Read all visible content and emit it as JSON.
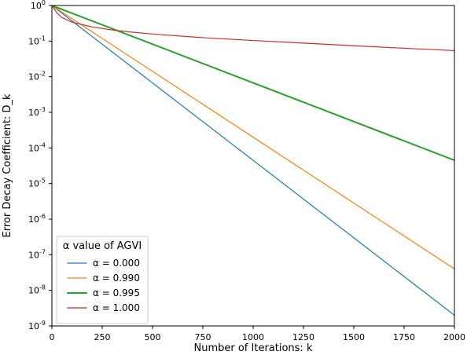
{
  "chart_data": {
    "type": "line",
    "xlabel": "Number of Iterations: k",
    "ylabel": "Error Decay Coefficient: D_k",
    "xlim": [
      0,
      2000
    ],
    "ylim": [
      1e-09,
      1
    ],
    "yscale": "log",
    "grid": false,
    "legend": {
      "title": "α value of AGVI",
      "placement": "lower-left"
    },
    "x_ticks": [
      0,
      250,
      500,
      750,
      1000,
      1250,
      1500,
      1750,
      2000
    ],
    "y_ticks": [
      1e-09,
      1e-08,
      1e-07,
      1e-06,
      1e-05,
      0.0001,
      0.001,
      0.01,
      0.1,
      1
    ],
    "y_tick_exponents": [
      "-9",
      "-8",
      "-7",
      "-6",
      "-5",
      "-4",
      "-3",
      "-2",
      "-1",
      "0"
    ],
    "series": [
      {
        "name": "α = 0.000",
        "color": "#1f77b4",
        "line_width": 1.2,
        "points": [
          [
            0,
            1
          ],
          [
            2000,
            2e-09
          ]
        ]
      },
      {
        "name": "α = 0.990",
        "color": "#ff7f0e",
        "line_width": 1.2,
        "points": [
          [
            0,
            1
          ],
          [
            2000,
            4e-08
          ]
        ]
      },
      {
        "name": "α = 0.995",
        "color": "#2ca02c",
        "line_width": 2,
        "points": [
          [
            0,
            1
          ],
          [
            2000,
            4.5e-05
          ]
        ]
      },
      {
        "name": "α = 1.000",
        "color": "#d62728",
        "line_width": 1.2,
        "points": [
          [
            0,
            1
          ],
          [
            25,
            0.62
          ],
          [
            50,
            0.46
          ],
          [
            100,
            0.34
          ],
          [
            200,
            0.25
          ],
          [
            300,
            0.205
          ],
          [
            400,
            0.178
          ],
          [
            500,
            0.158
          ],
          [
            750,
            0.125
          ],
          [
            1000,
            0.104
          ],
          [
            1250,
            0.088
          ],
          [
            1500,
            0.074
          ],
          [
            1750,
            0.063
          ],
          [
            2000,
            0.054
          ]
        ]
      }
    ]
  }
}
